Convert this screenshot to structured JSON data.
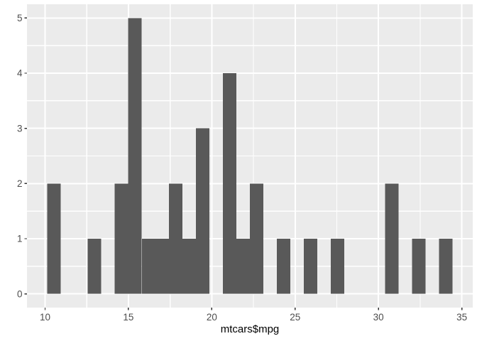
{
  "chart_data": {
    "type": "bar",
    "subtype": "histogram",
    "title": "",
    "xlabel": "mtcars$mpg",
    "ylabel": "",
    "legend": "none",
    "grid": "on",
    "x_tick_labels": [
      "10",
      "15",
      "20",
      "25",
      "30",
      "35"
    ],
    "x_tick_values": [
      10,
      15,
      20,
      25,
      30,
      35
    ],
    "x_minor_values": [
      12.5,
      17.5,
      22.5,
      27.5,
      32.5
    ],
    "y_tick_labels": [
      "0",
      "1",
      "2",
      "3",
      "4",
      "5"
    ],
    "y_tick_values": [
      0,
      1,
      2,
      3,
      4,
      5
    ],
    "y_minor_values": [
      0.5,
      1.5,
      2.5,
      3.5,
      4.5
    ],
    "xlim": [
      8.914,
      35.655
    ],
    "ylim": [
      -0.25,
      5.25
    ],
    "bin_width": 0.8103,
    "bins": [
      {
        "start": 10.129,
        "count": 2
      },
      {
        "start": 10.94,
        "count": 0
      },
      {
        "start": 11.75,
        "count": 0
      },
      {
        "start": 12.56,
        "count": 1
      },
      {
        "start": 13.371,
        "count": 0
      },
      {
        "start": 14.181,
        "count": 2
      },
      {
        "start": 14.991,
        "count": 5
      },
      {
        "start": 15.802,
        "count": 1
      },
      {
        "start": 16.612,
        "count": 1
      },
      {
        "start": 17.422,
        "count": 2
      },
      {
        "start": 18.233,
        "count": 1
      },
      {
        "start": 19.043,
        "count": 3
      },
      {
        "start": 19.853,
        "count": 0
      },
      {
        "start": 20.664,
        "count": 4
      },
      {
        "start": 21.474,
        "count": 1
      },
      {
        "start": 22.284,
        "count": 2
      },
      {
        "start": 23.095,
        "count": 0
      },
      {
        "start": 23.905,
        "count": 1
      },
      {
        "start": 24.716,
        "count": 0
      },
      {
        "start": 25.526,
        "count": 1
      },
      {
        "start": 26.336,
        "count": 0
      },
      {
        "start": 27.147,
        "count": 1
      },
      {
        "start": 27.957,
        "count": 0
      },
      {
        "start": 28.767,
        "count": 0
      },
      {
        "start": 29.578,
        "count": 0
      },
      {
        "start": 30.388,
        "count": 2
      },
      {
        "start": 31.198,
        "count": 0
      },
      {
        "start": 32.009,
        "count": 1
      },
      {
        "start": 32.819,
        "count": 0
      },
      {
        "start": 33.629,
        "count": 1
      }
    ],
    "style": {
      "bar_fill": "#595959",
      "panel_bg": "#EBEBEB",
      "grid_color": "#FFFFFF",
      "tick_color": "#333333",
      "tick_label_color": "#4D4D4D",
      "axis_title_color": "#000000",
      "figure_bg": "#FFFFFF"
    }
  }
}
